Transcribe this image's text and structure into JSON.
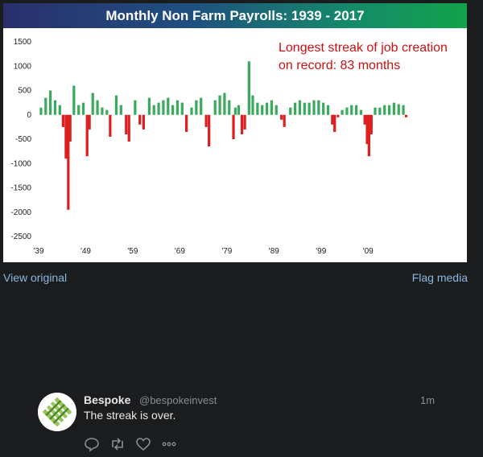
{
  "chart_data": {
    "type": "bar",
    "title": "Monthly Non Farm Payrolls: 1939 - 2017",
    "annotation": [
      "Longest streak of job creation",
      "on record: 83 months"
    ],
    "y_ticks": [
      1500,
      1000,
      500,
      0,
      -500,
      -1000,
      -1500,
      -2000,
      -2500
    ],
    "x_tick_labels": [
      "'39",
      "'49",
      "'59",
      "'69",
      "'79",
      "'89",
      "'99",
      "'09"
    ],
    "ylim": [
      -2500,
      1500
    ],
    "x_range": [
      1939,
      2017
    ],
    "positive_color": "#3aaa5c",
    "negative_color": "#dd1f1f",
    "x": [
      1939.5,
      1940.5,
      1941.5,
      1942.5,
      1943.5,
      1944.2,
      1944.8,
      1945.3,
      1945.7,
      1946.5,
      1947.5,
      1948.5,
      1949.3,
      1949.8,
      1950.5,
      1951.5,
      1952.5,
      1953.5,
      1954.2,
      1955.5,
      1956.5,
      1957.6,
      1958.2,
      1959.5,
      1960.5,
      1961.3,
      1962.5,
      1963.5,
      1964.5,
      1965.5,
      1966.5,
      1967.5,
      1968.5,
      1969.5,
      1970.4,
      1971.5,
      1972.5,
      1973.5,
      1974.6,
      1975.2,
      1976.5,
      1977.5,
      1978.5,
      1979.5,
      1980.4,
      1980.8,
      1981.5,
      1982.2,
      1982.8,
      1983.7,
      1984.5,
      1985.5,
      1986.5,
      1987.5,
      1988.5,
      1989.5,
      1990.6,
      1991.2,
      1992.5,
      1993.5,
      1994.5,
      1995.5,
      1996.5,
      1997.5,
      1998.5,
      1999.5,
      2000.5,
      2001.4,
      2001.9,
      2002.6,
      2003.5,
      2004.5,
      2005.5,
      2006.5,
      2007.5,
      2008.3,
      2008.8,
      2009.2,
      2009.7,
      2010.5,
      2011.5,
      2012.5,
      2013.5,
      2014.5,
      2015.5,
      2016.5,
      2017.1
    ],
    "values": [
      150,
      350,
      500,
      300,
      200,
      -250,
      -900,
      -1950,
      -550,
      600,
      200,
      250,
      -850,
      -300,
      450,
      300,
      150,
      100,
      -450,
      400,
      200,
      -400,
      -550,
      300,
      -200,
      -300,
      350,
      200,
      250,
      300,
      350,
      200,
      300,
      250,
      -350,
      150,
      300,
      350,
      -250,
      -650,
      300,
      400,
      450,
      300,
      -500,
      150,
      200,
      -400,
      -300,
      1100,
      400,
      250,
      200,
      250,
      300,
      200,
      -100,
      -250,
      150,
      250,
      300,
      250,
      250,
      300,
      300,
      250,
      200,
      -200,
      -350,
      -50,
      100,
      150,
      200,
      200,
      100,
      -200,
      -600,
      -850,
      -400,
      150,
      150,
      200,
      200,
      250,
      220,
      200,
      -50
    ]
  },
  "links": {
    "view_original": "View original",
    "flag_media": "Flag media"
  },
  "tweet": {
    "name": "Bespoke",
    "handle": "@bespokeinvest",
    "time": "1m",
    "text": "The streak is over.",
    "actions": [
      "reply-icon",
      "retweet-icon",
      "like-icon",
      "more-icon"
    ]
  }
}
